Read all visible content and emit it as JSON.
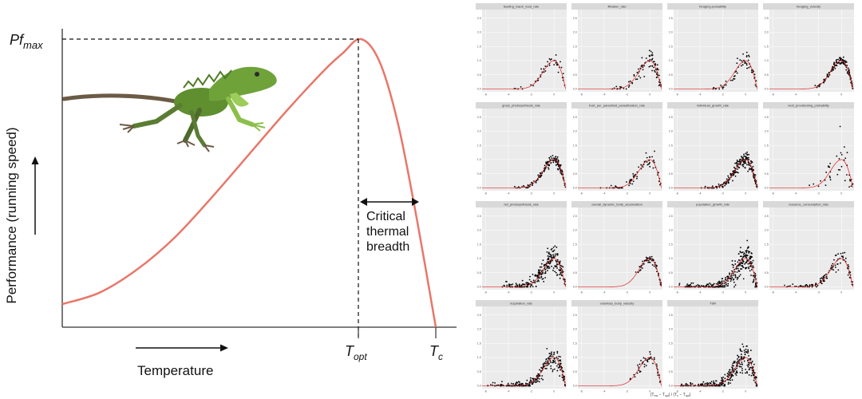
{
  "schematic": {
    "ylabel": "Performance (running speed)",
    "xlabel": "Temperature",
    "pfmax_main": "Pf",
    "pfmax_sub": "max",
    "topt_main": "T",
    "topt_sub": "opt",
    "tc_main": "T",
    "tc_sub": "c",
    "breadth_lines": [
      "Critical",
      "thermal",
      "breadth"
    ],
    "curve_color": "#e8776a",
    "image_icon": "lizard-photo"
  },
  "chart_data": [
    {
      "type": "line",
      "title": "",
      "xlabel": "Temperature",
      "ylabel": "Performance (running speed)",
      "model": "thermal performance curve",
      "x": [
        0,
        10,
        20,
        30,
        40,
        50,
        60,
        70,
        75,
        80,
        85,
        90,
        95,
        100
      ],
      "y": [
        0.08,
        0.12,
        0.2,
        0.31,
        0.45,
        0.6,
        0.75,
        0.89,
        0.95,
        1.0,
        0.92,
        0.7,
        0.37,
        0.0
      ],
      "x_opt": 80,
      "x_crit": 100,
      "annotations": [
        "Pf max",
        "T opt",
        "T c",
        "Critical thermal breadth"
      ]
    },
    {
      "type": "scatter",
      "xlabel": "(T_ms − T_opt) / (T_c − T_opt)",
      "x_ticks": [
        "-6",
        "-4",
        "-2",
        "0"
      ],
      "y_ticks": [
        "0.0",
        "0.5",
        "1.0",
        "1.5",
        "2.0",
        "2.5"
      ],
      "xlim": [
        -6.3,
        1.1
      ],
      "ylim": [
        -0.1,
        2.8
      ],
      "panels": [
        {
          "title": "feeding_haem_food_rate",
          "xrange": [
            -3.5,
            1
          ],
          "n": 45,
          "spread": 0.18
        },
        {
          "title": "filtration_rate",
          "xrange": [
            -3.5,
            1
          ],
          "n": 90,
          "spread": 0.25
        },
        {
          "title": "foraging probability",
          "xrange": [
            -3.5,
            1
          ],
          "n": 60,
          "spread": 0.2
        },
        {
          "title": "foraging_velocity",
          "xrange": [
            -2.5,
            1
          ],
          "n": 140,
          "spread": 0.12
        },
        {
          "title": "gross_photosynthesis_rate",
          "xrange": [
            -3.5,
            1
          ],
          "n": 150,
          "spread": 0.14
        },
        {
          "title": "host_per_parasitoid_parasitization_rate",
          "xrange": [
            -4.5,
            1
          ],
          "n": 70,
          "spread": 0.3
        },
        {
          "title": "individual_growth_rate",
          "xrange": [
            -4,
            1
          ],
          "n": 220,
          "spread": 0.2
        },
        {
          "title": "nest_provisioning_probability",
          "xrange": [
            -3,
            1
          ],
          "n": 40,
          "spread": 0.6
        },
        {
          "title": "net_photosynthesis_rate",
          "xrange": [
            -5,
            1
          ],
          "n": 260,
          "spread": 0.35
        },
        {
          "title": "overall_dynamic_body_acceleration",
          "xrange": [
            -1.5,
            1
          ],
          "n": 70,
          "spread": 0.1
        },
        {
          "title": "population_growth_rate",
          "xrange": [
            -6,
            1
          ],
          "n": 320,
          "spread": 0.45
        },
        {
          "title": "resource_consumption_rate",
          "xrange": [
            -5,
            1
          ],
          "n": 110,
          "spread": 0.2
        },
        {
          "title": "respiration_rate",
          "xrange": [
            -6,
            1
          ],
          "n": 260,
          "spread": 0.3
        },
        {
          "title": "voluntary_body_velocity",
          "xrange": [
            -2.5,
            1
          ],
          "n": 50,
          "spread": 0.15
        },
        {
          "title": "TSR",
          "xrange": [
            -6,
            1
          ],
          "n": 300,
          "spread": 0.4
        }
      ]
    }
  ]
}
